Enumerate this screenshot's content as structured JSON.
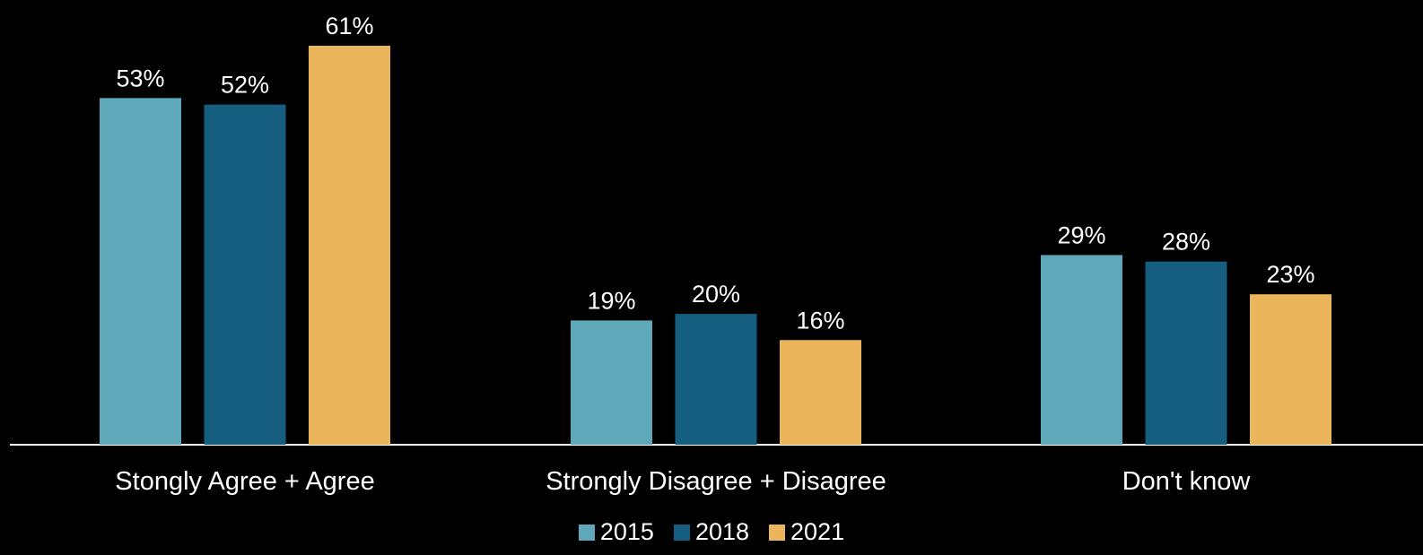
{
  "chart_data": {
    "type": "bar",
    "categories": [
      "Stongly Agree + Agree",
      "Strongly Disagree + Disagree",
      "Don't know"
    ],
    "series": [
      {
        "name": "2015",
        "color": "#5fa8b9",
        "values": [
          53,
          19,
          29
        ]
      },
      {
        "name": "2018",
        "color": "#155e80",
        "values": [
          52,
          20,
          28
        ]
      },
      {
        "name": "2021",
        "color": "#ebb65b",
        "values": [
          61,
          16,
          23
        ]
      }
    ],
    "value_suffix": "%",
    "title": "",
    "xlabel": "",
    "ylabel": "",
    "ylim": [
      0,
      61
    ],
    "grid": false,
    "legend": "bottom-center"
  }
}
